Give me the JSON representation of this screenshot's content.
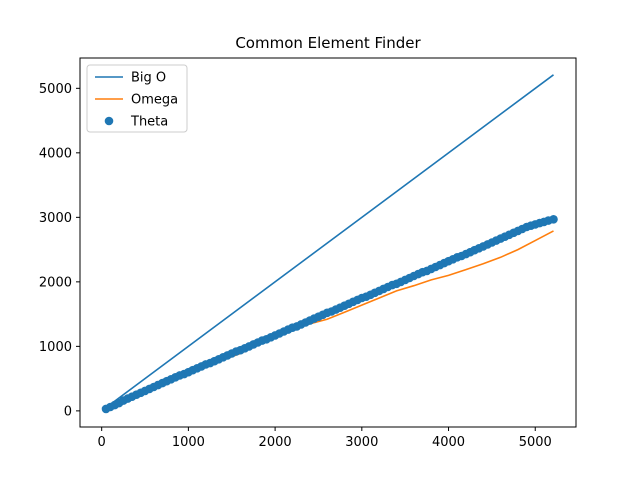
{
  "chart_data": {
    "type": "line",
    "title": "Common Element Finder",
    "xlabel": "",
    "ylabel": "",
    "xlim": [
      -250,
      5470
    ],
    "ylim": [
      -250,
      5470
    ],
    "xticks": [
      0,
      1000,
      2000,
      3000,
      4000,
      5000
    ],
    "yticks": [
      0,
      1000,
      2000,
      3000,
      4000,
      5000
    ],
    "grid": false,
    "legend_position": "top-left",
    "series": [
      {
        "name": "Big O",
        "kind": "line",
        "color": "#1f77b4",
        "points": [
          [
            50,
            50
          ],
          [
            5210,
            5210
          ]
        ]
      },
      {
        "name": "Omega",
        "kind": "line",
        "color": "#ff7f0e",
        "points": [
          [
            50,
            30
          ],
          [
            200,
            110
          ],
          [
            400,
            230
          ],
          [
            600,
            360
          ],
          [
            800,
            480
          ],
          [
            1000,
            600
          ],
          [
            1200,
            700
          ],
          [
            1400,
            790
          ],
          [
            1600,
            890
          ],
          [
            1800,
            1020
          ],
          [
            2000,
            1140
          ],
          [
            2200,
            1270
          ],
          [
            2400,
            1350
          ],
          [
            2600,
            1420
          ],
          [
            2800,
            1530
          ],
          [
            3000,
            1640
          ],
          [
            3200,
            1750
          ],
          [
            3400,
            1860
          ],
          [
            3600,
            1940
          ],
          [
            3800,
            2030
          ],
          [
            4000,
            2100
          ],
          [
            4200,
            2190
          ],
          [
            4400,
            2280
          ],
          [
            4600,
            2380
          ],
          [
            4800,
            2500
          ],
          [
            5000,
            2640
          ],
          [
            5210,
            2790
          ]
        ]
      },
      {
        "name": "Theta",
        "kind": "scatter",
        "color": "#1f77b4",
        "points": [
          [
            50,
            30
          ],
          [
            100,
            60
          ],
          [
            150,
            90
          ],
          [
            200,
            120
          ],
          [
            250,
            160
          ],
          [
            300,
            190
          ],
          [
            350,
            220
          ],
          [
            400,
            250
          ],
          [
            450,
            280
          ],
          [
            500,
            310
          ],
          [
            550,
            340
          ],
          [
            600,
            370
          ],
          [
            650,
            400
          ],
          [
            700,
            430
          ],
          [
            750,
            460
          ],
          [
            800,
            490
          ],
          [
            850,
            520
          ],
          [
            900,
            550
          ],
          [
            950,
            570
          ],
          [
            1000,
            600
          ],
          [
            1050,
            630
          ],
          [
            1100,
            660
          ],
          [
            1150,
            690
          ],
          [
            1200,
            720
          ],
          [
            1250,
            740
          ],
          [
            1300,
            770
          ],
          [
            1350,
            800
          ],
          [
            1400,
            830
          ],
          [
            1450,
            860
          ],
          [
            1500,
            890
          ],
          [
            1550,
            920
          ],
          [
            1600,
            940
          ],
          [
            1650,
            970
          ],
          [
            1700,
            1000
          ],
          [
            1750,
            1030
          ],
          [
            1800,
            1060
          ],
          [
            1850,
            1090
          ],
          [
            1900,
            1110
          ],
          [
            1950,
            1140
          ],
          [
            2000,
            1170
          ],
          [
            2050,
            1200
          ],
          [
            2100,
            1230
          ],
          [
            2150,
            1260
          ],
          [
            2200,
            1290
          ],
          [
            2250,
            1310
          ],
          [
            2300,
            1340
          ],
          [
            2350,
            1370
          ],
          [
            2400,
            1400
          ],
          [
            2450,
            1430
          ],
          [
            2500,
            1460
          ],
          [
            2550,
            1490
          ],
          [
            2600,
            1520
          ],
          [
            2650,
            1540
          ],
          [
            2700,
            1570
          ],
          [
            2750,
            1600
          ],
          [
            2800,
            1630
          ],
          [
            2850,
            1660
          ],
          [
            2900,
            1690
          ],
          [
            2950,
            1720
          ],
          [
            3000,
            1750
          ],
          [
            3050,
            1770
          ],
          [
            3100,
            1800
          ],
          [
            3150,
            1830
          ],
          [
            3200,
            1860
          ],
          [
            3250,
            1890
          ],
          [
            3300,
            1920
          ],
          [
            3350,
            1950
          ],
          [
            3400,
            1970
          ],
          [
            3450,
            2000
          ],
          [
            3500,
            2030
          ],
          [
            3550,
            2060
          ],
          [
            3600,
            2090
          ],
          [
            3650,
            2120
          ],
          [
            3700,
            2150
          ],
          [
            3750,
            2170
          ],
          [
            3800,
            2200
          ],
          [
            3850,
            2230
          ],
          [
            3900,
            2260
          ],
          [
            3950,
            2290
          ],
          [
            4000,
            2320
          ],
          [
            4050,
            2350
          ],
          [
            4100,
            2380
          ],
          [
            4150,
            2400
          ],
          [
            4200,
            2430
          ],
          [
            4250,
            2460
          ],
          [
            4300,
            2490
          ],
          [
            4350,
            2520
          ],
          [
            4400,
            2550
          ],
          [
            4450,
            2580
          ],
          [
            4500,
            2610
          ],
          [
            4550,
            2640
          ],
          [
            4600,
            2670
          ],
          [
            4650,
            2700
          ],
          [
            4700,
            2730
          ],
          [
            4750,
            2760
          ],
          [
            4800,
            2790
          ],
          [
            4850,
            2820
          ],
          [
            4900,
            2850
          ],
          [
            4950,
            2870
          ],
          [
            5000,
            2890
          ],
          [
            5050,
            2910
          ],
          [
            5100,
            2930
          ],
          [
            5150,
            2950
          ],
          [
            5210,
            2970
          ]
        ]
      }
    ]
  }
}
